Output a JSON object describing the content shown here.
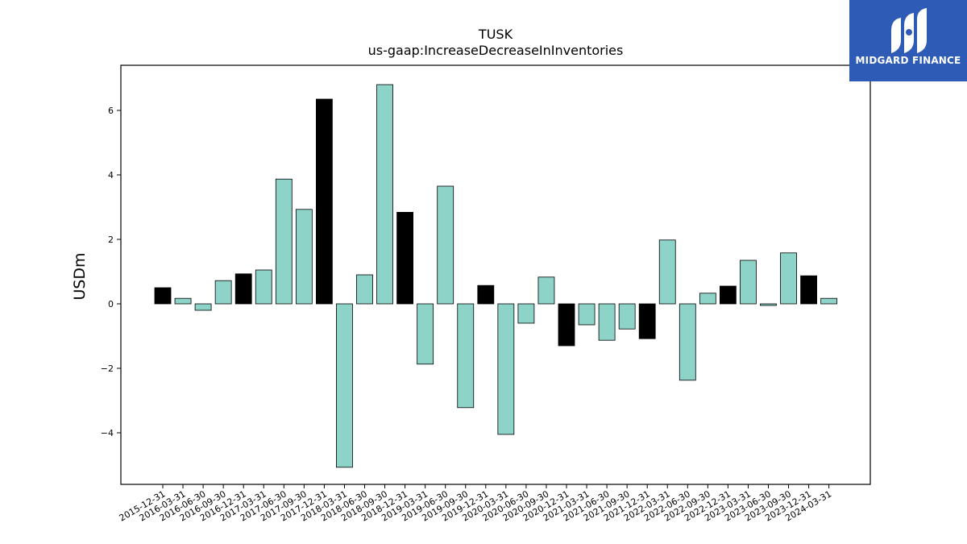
{
  "chart_data": {
    "type": "bar",
    "title": "TUSK",
    "subtitle": "us-gaap:IncreaseDecreaseInInventories",
    "xlabel": "",
    "ylabel": "USDm",
    "ylim": [
      -5.6,
      7.4
    ],
    "yticks": [
      -4,
      -2,
      0,
      2,
      4,
      6
    ],
    "ytick_labels": [
      "−4",
      "−2",
      "0",
      "2",
      "4",
      "6"
    ],
    "grid": false,
    "colors": {
      "quarter": "#8dd3c7",
      "year_end": "#000000",
      "edge": "#000000"
    },
    "categories": [
      "2015-12-31",
      "2016-03-31",
      "2016-06-30",
      "2016-09-30",
      "2016-12-31",
      "2017-03-31",
      "2017-06-30",
      "2017-09-30",
      "2017-12-31",
      "2018-03-31",
      "2018-06-30",
      "2018-09-30",
      "2018-12-31",
      "2019-03-31",
      "2019-06-30",
      "2019-09-30",
      "2019-12-31",
      "2020-03-31",
      "2020-06-30",
      "2020-09-30",
      "2020-12-31",
      "2021-03-31",
      "2021-06-30",
      "2021-09-30",
      "2021-12-31",
      "2022-03-31",
      "2022-06-30",
      "2022-09-30",
      "2022-12-31",
      "2023-03-31",
      "2023-06-30",
      "2023-09-30",
      "2023-12-31",
      "2024-03-31"
    ],
    "values": [
      0.5,
      0.17,
      -0.2,
      0.72,
      0.93,
      1.05,
      3.87,
      2.93,
      6.35,
      -5.07,
      0.9,
      6.8,
      2.84,
      -1.87,
      3.65,
      -3.22,
      0.57,
      -4.05,
      -0.6,
      0.83,
      -1.3,
      -0.65,
      -1.13,
      -0.78,
      -1.08,
      1.98,
      -2.37,
      0.33,
      0.55,
      1.35,
      -0.05,
      1.58,
      0.87,
      0.17
    ]
  },
  "logo": {
    "name": "MIDGARD FINANCE"
  }
}
